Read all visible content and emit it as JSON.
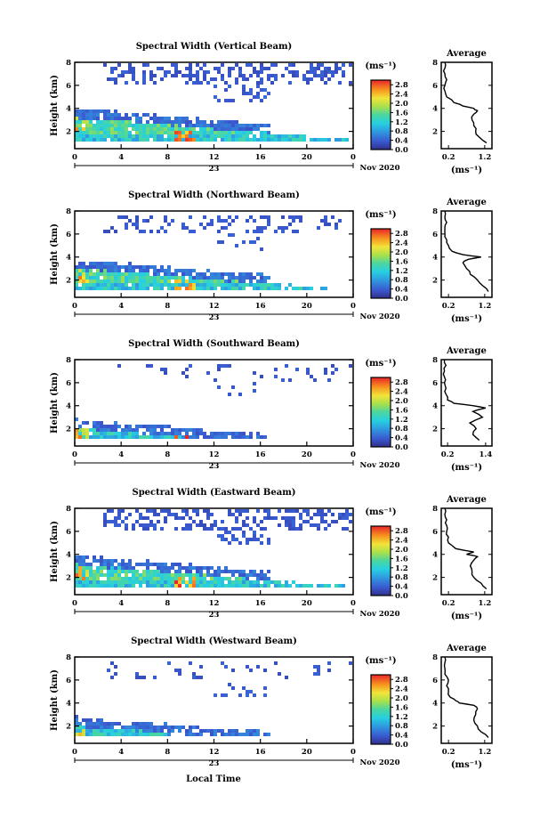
{
  "chart_data": [
    {
      "type": "heatmap",
      "title": "Spectral Width (Vertical Beam)",
      "ylabel": "Height (km)",
      "yticks": [
        "2",
        "4",
        "6",
        "8"
      ],
      "ylim": [
        0.5,
        8
      ],
      "xticks": [
        "0",
        "4",
        "8",
        "12",
        "16",
        "20",
        "0"
      ],
      "xlim": [
        0,
        24
      ],
      "date_label": "23",
      "month_label": "Nov 2020",
      "colorbar": {
        "unit": "(ms⁻¹)",
        "ticks": [
          "2.8",
          "2.4",
          "2.0",
          "1.6",
          "1.2",
          "0.8",
          "0.4",
          "0.0"
        ],
        "range": [
          0,
          3.0
        ]
      },
      "profile": {
        "title": "Average",
        "xticks": [
          "0.2",
          "1.2"
        ],
        "xlim": [
          0,
          1.4
        ],
        "yticks": [
          "2",
          "4",
          "6",
          "8"
        ],
        "xlabel": "(ms⁻¹)",
        "heights": [
          1.0,
          1.5,
          2.0,
          2.5,
          3.0,
          3.5,
          3.8,
          4.0,
          4.2,
          4.5,
          5.0,
          5.5,
          6.0,
          6.5,
          7.0,
          7.5,
          8.0
        ],
        "values": [
          1.25,
          1.05,
          0.95,
          0.9,
          0.85,
          0.9,
          1.0,
          0.9,
          0.6,
          0.35,
          0.15,
          0.1,
          0.1,
          0.15,
          0.1,
          0.1,
          0.1
        ]
      },
      "cloud_top_km": 7.9,
      "boundary_km": 3.2,
      "upper_cover": 0.7,
      "base_level_km": 1.0
    },
    {
      "type": "heatmap",
      "title": "Spectral Width (Northward Beam)",
      "ylabel": "Height (km)",
      "yticks": [
        "2",
        "4",
        "6",
        "8"
      ],
      "ylim": [
        0.5,
        8
      ],
      "xticks": [
        "0",
        "4",
        "8",
        "12",
        "16",
        "20",
        "0"
      ],
      "xlim": [
        0,
        24
      ],
      "date_label": "23",
      "month_label": "Nov 2020",
      "colorbar": {
        "unit": "(ms⁻¹)",
        "ticks": [
          "2.8",
          "2.4",
          "2.0",
          "1.6",
          "1.2",
          "0.8",
          "0.4",
          "0.0"
        ],
        "range": [
          0,
          3.0
        ]
      },
      "profile": {
        "title": "Average",
        "xticks": [
          "0.2",
          "1.2"
        ],
        "xlim": [
          0,
          1.4
        ],
        "yticks": [
          "2",
          "4",
          "6",
          "8"
        ],
        "xlabel": "(ms⁻¹)",
        "heights": [
          1.0,
          1.5,
          2.0,
          2.5,
          3.0,
          3.5,
          3.8,
          4.0,
          4.2,
          4.5,
          5.0,
          5.5,
          6.0,
          6.5,
          7.0,
          7.5,
          8.0
        ],
        "values": [
          1.3,
          1.15,
          1.0,
          0.8,
          0.7,
          0.6,
          0.75,
          1.1,
          0.6,
          0.3,
          0.2,
          0.15,
          0.1,
          0.1,
          0.15,
          0.1,
          0.1
        ]
      },
      "cloud_top_km": 7.7,
      "boundary_km": 3.0,
      "upper_cover": 0.45,
      "base_level_km": 1.0
    },
    {
      "type": "heatmap",
      "title": "Spectral Width (Southward Beam)",
      "ylabel": "Height (km)",
      "yticks": [
        "2",
        "4",
        "6",
        "8"
      ],
      "ylim": [
        0.5,
        8
      ],
      "xticks": [
        "0",
        "4",
        "8",
        "12",
        "16",
        "20",
        "0"
      ],
      "xlim": [
        0,
        24
      ],
      "date_label": "23",
      "month_label": "Nov 2020",
      "colorbar": {
        "unit": "(ms⁻¹)",
        "ticks": [
          "2.8",
          "2.4",
          "2.0",
          "1.6",
          "1.2",
          "0.8",
          "0.4",
          "0.0"
        ],
        "range": [
          0,
          3.0
        ]
      },
      "profile": {
        "title": "Average",
        "xticks": [
          "0.2",
          "1.4"
        ],
        "xlim": [
          0,
          1.6
        ],
        "yticks": [
          "2",
          "4",
          "6",
          "8"
        ],
        "xlabel": "(ms⁻¹)",
        "heights": [
          1.0,
          1.5,
          2.0,
          2.5,
          3.0,
          3.5,
          3.8,
          4.0,
          4.2,
          4.5,
          5.0,
          5.5,
          6.0,
          6.5,
          7.0,
          7.5,
          8.0
        ],
        "values": [
          1.2,
          1.0,
          1.1,
          0.9,
          1.3,
          1.0,
          1.4,
          1.0,
          0.4,
          0.2,
          0.15,
          0.15,
          0.1,
          0.1,
          0.1,
          0.15,
          0.1
        ]
      },
      "cloud_top_km": 7.6,
      "boundary_km": 2.0,
      "upper_cover": 0.2,
      "base_level_km": 1.0
    },
    {
      "type": "heatmap",
      "title": "Spectral Width (Eastward Beam)",
      "ylabel": "Height (km)",
      "yticks": [
        "2",
        "4",
        "6",
        "8"
      ],
      "ylim": [
        0.5,
        8
      ],
      "xticks": [
        "0",
        "4",
        "8",
        "12",
        "16",
        "20",
        "0"
      ],
      "xlim": [
        0,
        24
      ],
      "date_label": "23",
      "month_label": "Nov 2020",
      "colorbar": {
        "unit": "(ms⁻¹)",
        "ticks": [
          "2.8",
          "2.4",
          "2.0",
          "1.6",
          "1.2",
          "0.8",
          "0.4",
          "0.0"
        ],
        "range": [
          0,
          3.0
        ]
      },
      "profile": {
        "title": "Average",
        "xticks": [
          "0.2",
          "1.2"
        ],
        "xlim": [
          0,
          1.4
        ],
        "yticks": [
          "2",
          "4",
          "6",
          "8"
        ],
        "xlabel": "(ms⁻¹)",
        "heights": [
          1.0,
          1.5,
          2.0,
          2.5,
          3.0,
          3.5,
          3.8,
          4.0,
          4.2,
          4.5,
          5.0,
          5.5,
          6.0,
          6.5,
          7.0,
          7.5,
          8.0
        ],
        "values": [
          1.25,
          1.1,
          0.9,
          0.85,
          0.8,
          0.9,
          1.0,
          0.7,
          0.9,
          0.4,
          0.2,
          0.2,
          0.15,
          0.15,
          0.15,
          0.1,
          0.1
        ]
      },
      "cloud_top_km": 7.9,
      "boundary_km": 3.1,
      "upper_cover": 0.75,
      "base_level_km": 1.0
    },
    {
      "type": "heatmap",
      "title": "Spectral Width (Westward Beam)",
      "ylabel": "Height (km)",
      "yticks": [
        "2",
        "4",
        "6",
        "8"
      ],
      "ylim": [
        0.5,
        8
      ],
      "xticks": [
        "0",
        "4",
        "8",
        "12",
        "16",
        "20",
        "0"
      ],
      "xlim": [
        0,
        24
      ],
      "date_label": "23",
      "month_label": "Nov 2020",
      "colorbar": {
        "unit": "(ms⁻¹)",
        "ticks": [
          "2.8",
          "2.4",
          "2.0",
          "1.6",
          "1.2",
          "0.8",
          "0.4",
          "0.0"
        ],
        "range": [
          0,
          3.0
        ]
      },
      "profile": {
        "title": "Average",
        "xticks": [
          "0.2",
          "1.2"
        ],
        "xlim": [
          0,
          1.4
        ],
        "yticks": [
          "2",
          "4",
          "6",
          "8"
        ],
        "xlabel": "(ms⁻¹)",
        "heights": [
          1.0,
          1.5,
          2.0,
          2.5,
          3.0,
          3.5,
          3.8,
          4.0,
          4.2,
          4.5,
          5.0,
          5.5,
          6.0,
          6.5,
          7.0,
          7.5,
          8.0
        ],
        "values": [
          1.3,
          1.1,
          1.0,
          0.9,
          0.95,
          1.0,
          0.9,
          0.5,
          0.4,
          0.25,
          0.2,
          0.15,
          0.2,
          0.1,
          0.1,
          0.1,
          0.1
        ]
      },
      "cloud_top_km": 7.8,
      "boundary_km": 2.0,
      "upper_cover": 0.2,
      "base_level_km": 1.0
    }
  ],
  "xlabel": "Local Time"
}
